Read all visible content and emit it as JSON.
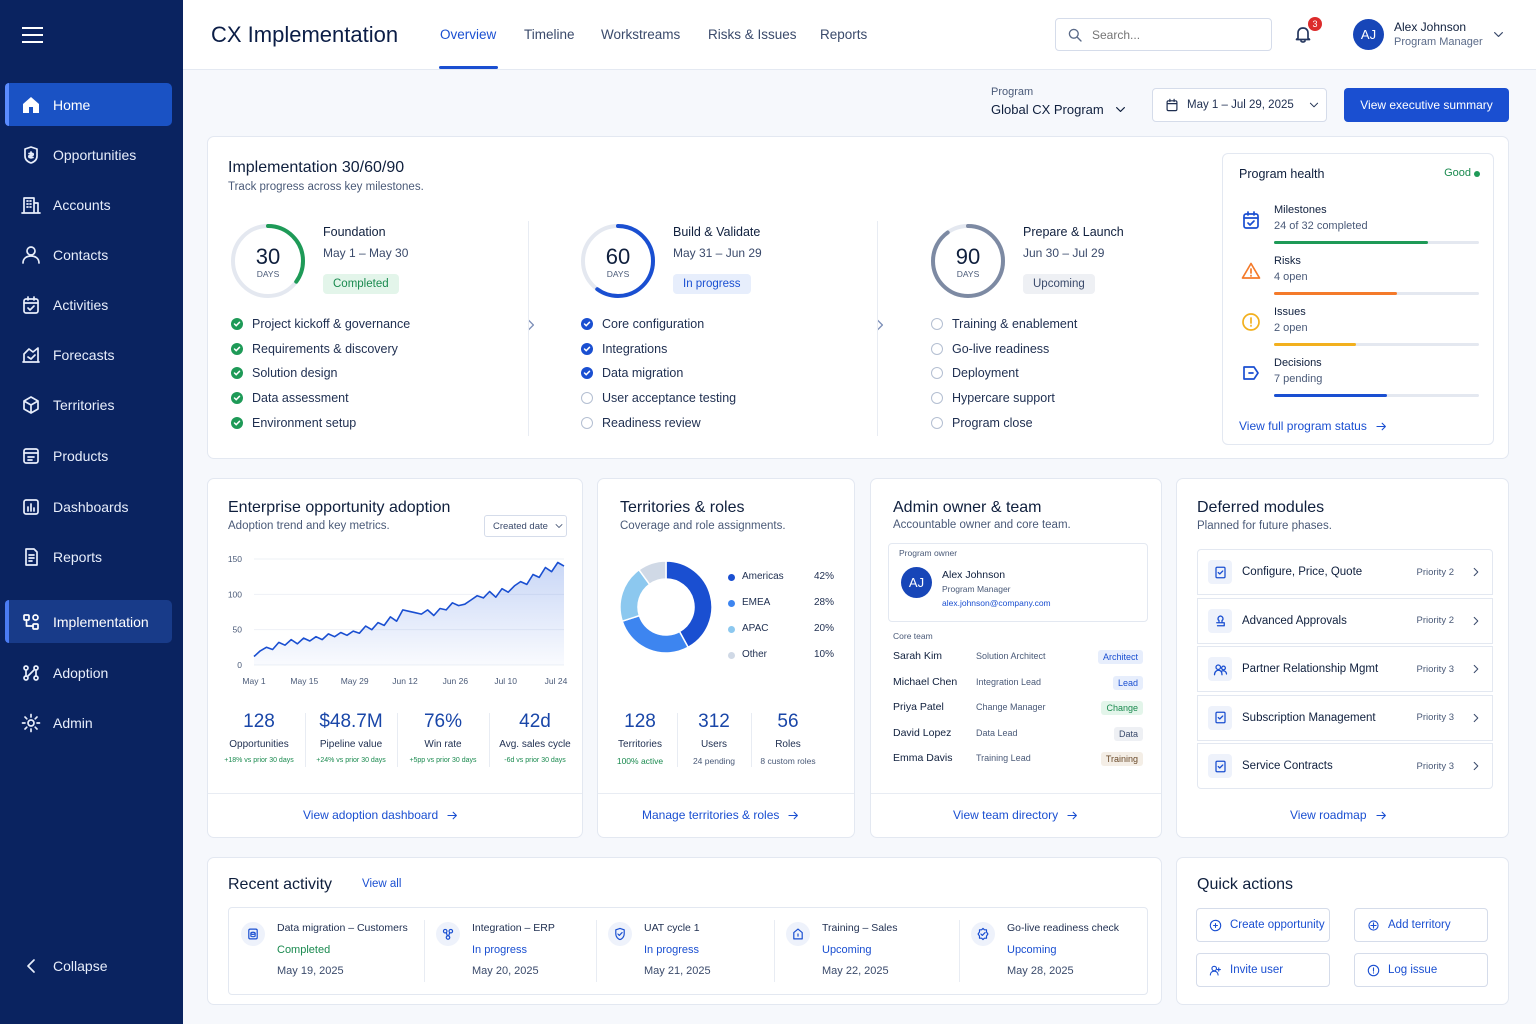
{
  "sidebar": {
    "items": [
      {
        "label": "Home",
        "icon": "home-icon"
      },
      {
        "label": "Opportunities",
        "icon": "opportunities-icon"
      },
      {
        "label": "Accounts",
        "icon": "building-icon"
      },
      {
        "label": "Contacts",
        "icon": "user-icon"
      },
      {
        "label": "Activities",
        "icon": "calendar-check-icon"
      },
      {
        "label": "Forecasts",
        "icon": "forecast-icon"
      },
      {
        "label": "Territories",
        "icon": "territory-icon"
      },
      {
        "label": "Products",
        "icon": "box-icon"
      },
      {
        "label": "Dashboards",
        "icon": "dashboard-icon"
      },
      {
        "label": "Reports",
        "icon": "report-icon"
      },
      {
        "label": "Implementation",
        "icon": "implementation-icon"
      },
      {
        "label": "Adoption",
        "icon": "adoption-icon"
      },
      {
        "label": "Admin",
        "icon": "gear-icon"
      }
    ],
    "collapse_label": "Collapse"
  },
  "header": {
    "title": "CX Implementation",
    "tabs": [
      "Overview",
      "Timeline",
      "Workstreams",
      "Risks & Issues",
      "Reports"
    ],
    "search_placeholder": "Search...",
    "notification_count": "3",
    "user": {
      "initials": "AJ",
      "name": "Alex Johnson",
      "role": "Program Manager"
    }
  },
  "filters": {
    "program_label": "Program",
    "program_value": "Global CX Program",
    "date_range": "May 1 – Jul 29, 2025",
    "exec_button": "View executive summary"
  },
  "implementation": {
    "title": "Implementation 30/60/90",
    "subtitle": "Track progress across key milestones.",
    "phases": [
      {
        "days": "30",
        "days_label": "DAYS",
        "name": "Foundation",
        "dates": "May 1 – May 30",
        "status": "Completed",
        "progress": 0.35,
        "tasks": [
          {
            "label": "Project kickoff & governance",
            "state": "done"
          },
          {
            "label": "Requirements & discovery",
            "state": "done"
          },
          {
            "label": "Solution design",
            "state": "done"
          },
          {
            "label": "Data assessment",
            "state": "done"
          },
          {
            "label": "Environment setup",
            "state": "done"
          }
        ]
      },
      {
        "days": "60",
        "days_label": "DAYS",
        "name": "Build & Validate",
        "dates": "May 31 – Jun 29",
        "status": "In progress",
        "progress": 0.6,
        "tasks": [
          {
            "label": "Core configuration",
            "state": "done"
          },
          {
            "label": "Integrations",
            "state": "done"
          },
          {
            "label": "Data migration",
            "state": "done"
          },
          {
            "label": "User acceptance testing",
            "state": "todo"
          },
          {
            "label": "Readiness review",
            "state": "todo"
          }
        ]
      },
      {
        "days": "90",
        "days_label": "DAYS",
        "name": "Prepare & Launch",
        "dates": "Jun 30 – Jul 29",
        "status": "Upcoming",
        "progress": 0.9,
        "tasks": [
          {
            "label": "Training & enablement",
            "state": "todo"
          },
          {
            "label": "Go-live readiness",
            "state": "todo"
          },
          {
            "label": "Deployment",
            "state": "todo"
          },
          {
            "label": "Hypercare support",
            "state": "todo"
          },
          {
            "label": "Program close",
            "state": "todo"
          }
        ]
      }
    ]
  },
  "program_health": {
    "title": "Program health",
    "status": "Good",
    "items": [
      {
        "label": "Milestones",
        "value": "24 of 32 completed",
        "fraction": 0.75,
        "color": "#1e9a57",
        "icon": "calendar-check-icon"
      },
      {
        "label": "Risks",
        "value": "4 open",
        "fraction": 0.6,
        "color": "#f47a2a",
        "icon": "warning-icon"
      },
      {
        "label": "Issues",
        "value": "2 open",
        "fraction": 0.4,
        "color": "#f2b01e",
        "icon": "alert-circle-icon"
      },
      {
        "label": "Decisions",
        "value": "7 pending",
        "fraction": 0.55,
        "color": "#1a4fd1",
        "icon": "decision-icon"
      }
    ],
    "link": "View full program status"
  },
  "adoption": {
    "title": "Enterprise opportunity adoption",
    "subtitle": "Adoption trend and key metrics.",
    "dropdown": "Created date",
    "kpis": [
      {
        "value": "128",
        "label": "Opportunities",
        "delta": "+18% vs prior 30 days"
      },
      {
        "value": "$48.7M",
        "label": "Pipeline value",
        "delta": "+24% vs prior 30 days"
      },
      {
        "value": "76%",
        "label": "Win rate",
        "delta": "+5pp vs prior 30 days"
      },
      {
        "value": "42d",
        "label": "Avg. sales cycle",
        "delta": "-6d vs prior 30 days"
      }
    ],
    "link": "View adoption dashboard"
  },
  "chart_data": [
    {
      "type": "area",
      "title": "",
      "xlabel": "",
      "ylabel": "",
      "x_ticks": [
        "May 1",
        "May 15",
        "May 29",
        "Jun 12",
        "Jun 26",
        "Jul 10",
        "Jul 24"
      ],
      "y_ticks": [
        0,
        50,
        100,
        150
      ],
      "ylim": [
        0,
        150
      ],
      "grid": true,
      "values": [
        12,
        20,
        25,
        22,
        32,
        28,
        36,
        30,
        38,
        34,
        40,
        36,
        44,
        40,
        46,
        42,
        48,
        45,
        55,
        50,
        60,
        56,
        68,
        62,
        78,
        76,
        74,
        72,
        78,
        70,
        80,
        78,
        88,
        84,
        86,
        92,
        98,
        95,
        104,
        96,
        108,
        103,
        112,
        118,
        114,
        128,
        124,
        138,
        132,
        145,
        140
      ]
    },
    {
      "type": "pie",
      "title": "",
      "categories": [
        "Americas",
        "EMEA",
        "APAC",
        "Other"
      ],
      "values": [
        42,
        28,
        20,
        10
      ],
      "legend": "right"
    }
  ],
  "territories": {
    "title": "Territories & roles",
    "subtitle": "Coverage and role assignments.",
    "legend": [
      {
        "label": "Americas",
        "value": "42%",
        "color": "#1a4fd1"
      },
      {
        "label": "EMEA",
        "value": "28%",
        "color": "#3d85f0"
      },
      {
        "label": "APAC",
        "value": "20%",
        "color": "#8cc8ef"
      },
      {
        "label": "Other",
        "value": "10%",
        "color": "#d0d9e6"
      }
    ],
    "kpis": [
      {
        "value": "128",
        "label": "Territories",
        "sub": "100% active"
      },
      {
        "value": "312",
        "label": "Users",
        "sub": "24 pending"
      },
      {
        "value": "56",
        "label": "Roles",
        "sub": "8 custom roles"
      }
    ],
    "link": "Manage territories & roles"
  },
  "team": {
    "title": "Admin owner & team",
    "subtitle": "Accountable owner and core team.",
    "owner_label": "Program owner",
    "owner": {
      "initials": "AJ",
      "name": "Alex Johnson",
      "role": "Program Manager",
      "email": "alex.johnson@company.com"
    },
    "core_label": "Core team",
    "members": [
      {
        "name": "Sarah Kim",
        "role": "Solution Architect",
        "tag": "Architect",
        "tag_bg": "#e7eefc",
        "tag_fg": "#1a4fd1"
      },
      {
        "name": "Michael Chen",
        "role": "Integration Lead",
        "tag": "Lead",
        "tag_bg": "#e7eefc",
        "tag_fg": "#1a4fd1"
      },
      {
        "name": "Priya Patel",
        "role": "Change Manager",
        "tag": "Change",
        "tag_bg": "#e3f5ea",
        "tag_fg": "#1a8a4f"
      },
      {
        "name": "David Lopez",
        "role": "Data Lead",
        "tag": "Data",
        "tag_bg": "#eef0f4",
        "tag_fg": "#3a4a6b"
      },
      {
        "name": "Emma Davis",
        "role": "Training Lead",
        "tag": "Training",
        "tag_bg": "#f4eee6",
        "tag_fg": "#6a4a2a"
      }
    ],
    "link": "View team directory"
  },
  "deferred": {
    "title": "Deferred modules",
    "subtitle": "Planned for future phases.",
    "modules": [
      {
        "name": "Configure, Price, Quote",
        "priority": "Priority 2",
        "icon": "cpq-icon"
      },
      {
        "name": "Advanced Approvals",
        "priority": "Priority 2",
        "icon": "approval-icon"
      },
      {
        "name": "Partner Relationship Mgmt",
        "priority": "Priority 3",
        "icon": "partner-icon"
      },
      {
        "name": "Subscription Management",
        "priority": "Priority 3",
        "icon": "subscription-icon"
      },
      {
        "name": "Service Contracts",
        "priority": "Priority 3",
        "icon": "contract-icon"
      }
    ],
    "link": "View roadmap"
  },
  "activity": {
    "title": "Recent activity",
    "view_all": "View all",
    "items": [
      {
        "title": "Data migration – Customers",
        "status": "Completed",
        "status_color": "#1a8a4f",
        "date": "May 19, 2025",
        "icon": "database-icon"
      },
      {
        "title": "Integration – ERP",
        "status": "In progress",
        "status_color": "#1a4fd1",
        "date": "May 20, 2025",
        "icon": "integration-icon"
      },
      {
        "title": "UAT cycle 1",
        "status": "In progress",
        "status_color": "#1a4fd1",
        "date": "May 21, 2025",
        "icon": "check-shield-icon"
      },
      {
        "title": "Training – Sales",
        "status": "Upcoming",
        "status_color": "#1a4fd1",
        "date": "May 22, 2025",
        "icon": "training-icon"
      },
      {
        "title": "Go-live readiness check",
        "status": "Upcoming",
        "status_color": "#1a4fd1",
        "date": "May 28, 2025",
        "icon": "readiness-icon"
      }
    ]
  },
  "quick_actions": {
    "title": "Quick actions",
    "buttons": [
      {
        "label": "Create opportunity",
        "icon": "opportunity-add-icon"
      },
      {
        "label": "Add territory",
        "icon": "territory-add-icon"
      },
      {
        "label": "Invite user",
        "icon": "invite-user-icon"
      },
      {
        "label": "Log issue",
        "icon": "issue-icon"
      }
    ]
  }
}
